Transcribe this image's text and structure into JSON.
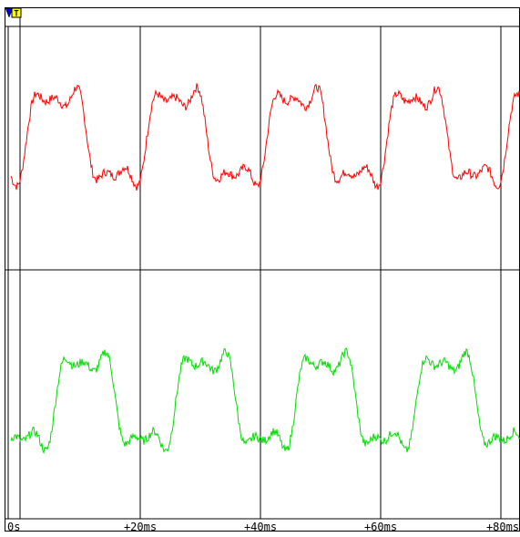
{
  "trigger_marker": {
    "label": "T",
    "icon": "trigger-icon",
    "color": "#ffff00"
  },
  "axis": {
    "tick_labels": [
      "0s",
      "+20ms",
      "+40ms",
      "+60ms",
      "+80ms"
    ]
  },
  "colors": {
    "channel_a": "#ff0000",
    "channel_b": "#00dd00",
    "grid": "#000000",
    "background": "#ffffff"
  },
  "chart_data": {
    "type": "line",
    "x_unit": "ms",
    "xlim": [
      0,
      86
    ],
    "grid": true,
    "series": [
      {
        "id": "channel_a",
        "period_ms": 20
      },
      {
        "id": "channel_b",
        "period_ms": 20
      }
    ]
  }
}
